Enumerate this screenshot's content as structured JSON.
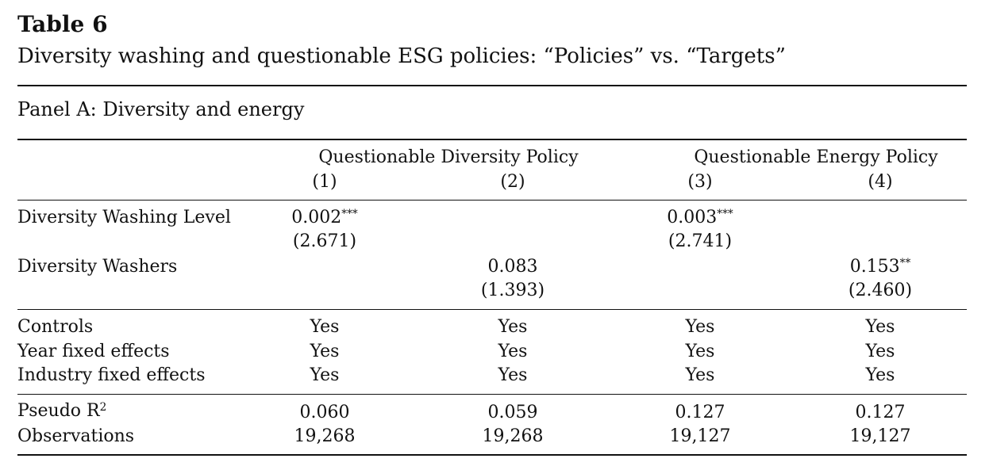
{
  "table": {
    "title": "Table 6",
    "subtitle": "Diversity washing and questionable ESG policies: “Policies” vs. “Targets”",
    "panel": "Panel A: Diversity and energy",
    "groups": [
      "Questionable Diversity Policy",
      "Questionable Energy Policy"
    ],
    "columns": [
      "(1)",
      "(2)",
      "(3)",
      "(4)"
    ],
    "rows": {
      "dwl": {
        "label": "Diversity Washing Level",
        "c1": "0.002",
        "c1_sig": "***",
        "c1_t": "(2.671)",
        "c3": "0.003",
        "c3_sig": "***",
        "c3_t": "(2.741)"
      },
      "dw": {
        "label": "Diversity Washers",
        "c2": "0.083",
        "c2_sig": "",
        "c2_t": "(1.393)",
        "c4": "0.153",
        "c4_sig": "**",
        "c4_t": "(2.460)"
      },
      "controls": {
        "label": "Controls",
        "values": [
          "Yes",
          "Yes",
          "Yes",
          "Yes"
        ]
      },
      "year_fe": {
        "label": "Year fixed effects",
        "values": [
          "Yes",
          "Yes",
          "Yes",
          "Yes"
        ]
      },
      "industry_fe": {
        "label": "Industry fixed effects",
        "values": [
          "Yes",
          "Yes",
          "Yes",
          "Yes"
        ]
      },
      "pseudo_r2": {
        "label": "Pseudo R",
        "label_sup": "2",
        "values": [
          "0.060",
          "0.059",
          "0.127",
          "0.127"
        ]
      },
      "observations": {
        "label": "Observations",
        "values": [
          "19,268",
          "19,268",
          "19,127",
          "19,127"
        ]
      }
    }
  }
}
